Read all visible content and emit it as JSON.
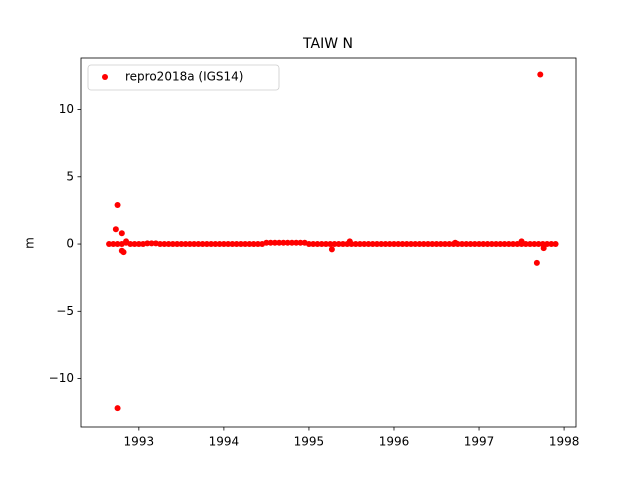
{
  "chart_data": {
    "type": "scatter",
    "title": "TAIW N",
    "y_label": "m",
    "x": [
      1992.65,
      1992.7,
      1992.75,
      1992.8,
      1992.85,
      1992.9,
      1992.95,
      1993.0,
      1993.05,
      1993.1,
      1993.15,
      1993.2,
      1993.25,
      1993.3,
      1993.35,
      1993.4,
      1993.45,
      1993.5,
      1993.55,
      1993.6,
      1993.65,
      1993.7,
      1993.75,
      1993.8,
      1993.85,
      1993.9,
      1993.95,
      1994.0,
      1994.05,
      1994.1,
      1994.15,
      1994.2,
      1994.25,
      1994.3,
      1994.35,
      1994.4,
      1994.45,
      1994.5,
      1994.55,
      1994.6,
      1994.65,
      1994.7,
      1994.75,
      1994.8,
      1994.85,
      1994.9,
      1994.95,
      1995.0,
      1995.05,
      1995.1,
      1995.15,
      1995.2,
      1995.25,
      1995.3,
      1995.35,
      1995.4,
      1995.45,
      1995.5,
      1995.55,
      1995.6,
      1995.65,
      1995.7,
      1995.75,
      1995.8,
      1995.85,
      1995.9,
      1995.95,
      1996.0,
      1996.05,
      1996.1,
      1996.15,
      1996.2,
      1996.25,
      1996.3,
      1996.35,
      1996.4,
      1996.45,
      1996.5,
      1996.55,
      1996.6,
      1996.65,
      1996.7,
      1996.75,
      1996.8,
      1996.85,
      1996.9,
      1996.95,
      1997.0,
      1997.05,
      1997.1,
      1997.15,
      1997.2,
      1997.25,
      1997.3,
      1997.35,
      1997.4,
      1997.45,
      1997.5,
      1997.55,
      1997.6,
      1997.65,
      1997.7,
      1997.75,
      1997.8,
      1997.85,
      1997.9,
      1997.72,
      1992.75,
      1992.75,
      1992.73,
      1992.8,
      1992.8,
      1992.82,
      1995.27,
      1995.48,
      1997.68,
      1997.76,
      1997.5,
      1992.85,
      1996.72
    ],
    "series": [
      {
        "name": "repro2018a (IGS14)",
        "color": "#ff0000",
        "values": [
          0,
          0,
          0,
          0,
          0.1,
          0,
          0,
          0,
          0,
          0.05,
          0.05,
          0.05,
          0,
          0,
          0,
          0,
          0,
          0,
          0,
          0,
          0,
          0,
          0,
          0,
          0,
          0,
          0,
          0,
          0,
          0,
          0,
          0,
          0,
          0,
          0,
          0,
          0,
          0.1,
          0.1,
          0.1,
          0.1,
          0.1,
          0.1,
          0.1,
          0.1,
          0.1,
          0.1,
          0,
          0,
          0,
          0,
          0,
          0,
          0,
          0,
          0,
          0,
          0,
          0,
          0,
          0,
          0,
          0,
          0,
          0,
          0,
          0,
          0,
          0,
          0,
          0,
          0,
          0,
          0,
          0,
          0,
          0,
          0,
          0,
          0,
          0,
          0,
          0,
          0,
          0,
          0,
          0,
          0,
          0,
          0,
          0,
          0,
          0,
          0,
          0,
          0,
          0,
          0,
          0,
          0,
          0,
          0,
          0,
          0,
          0,
          0,
          12.6,
          -12.2,
          2.9,
          1.1,
          0.8,
          -0.5,
          -0.6,
          -0.4,
          0.2,
          -1.4,
          -0.3,
          0.2,
          0.2,
          0.1
        ]
      }
    ],
    "xlim": [
      1992.32,
      1998.14
    ],
    "xticks": [
      1993,
      1994,
      1995,
      1996,
      1997,
      1998
    ],
    "ylim": [
      -13.6,
      13.83
    ],
    "yticks": [
      {
        "value": -10,
        "label": "−10"
      },
      {
        "value": -5,
        "label": "−5"
      },
      0,
      5,
      10
    ],
    "legend": "upper left"
  }
}
